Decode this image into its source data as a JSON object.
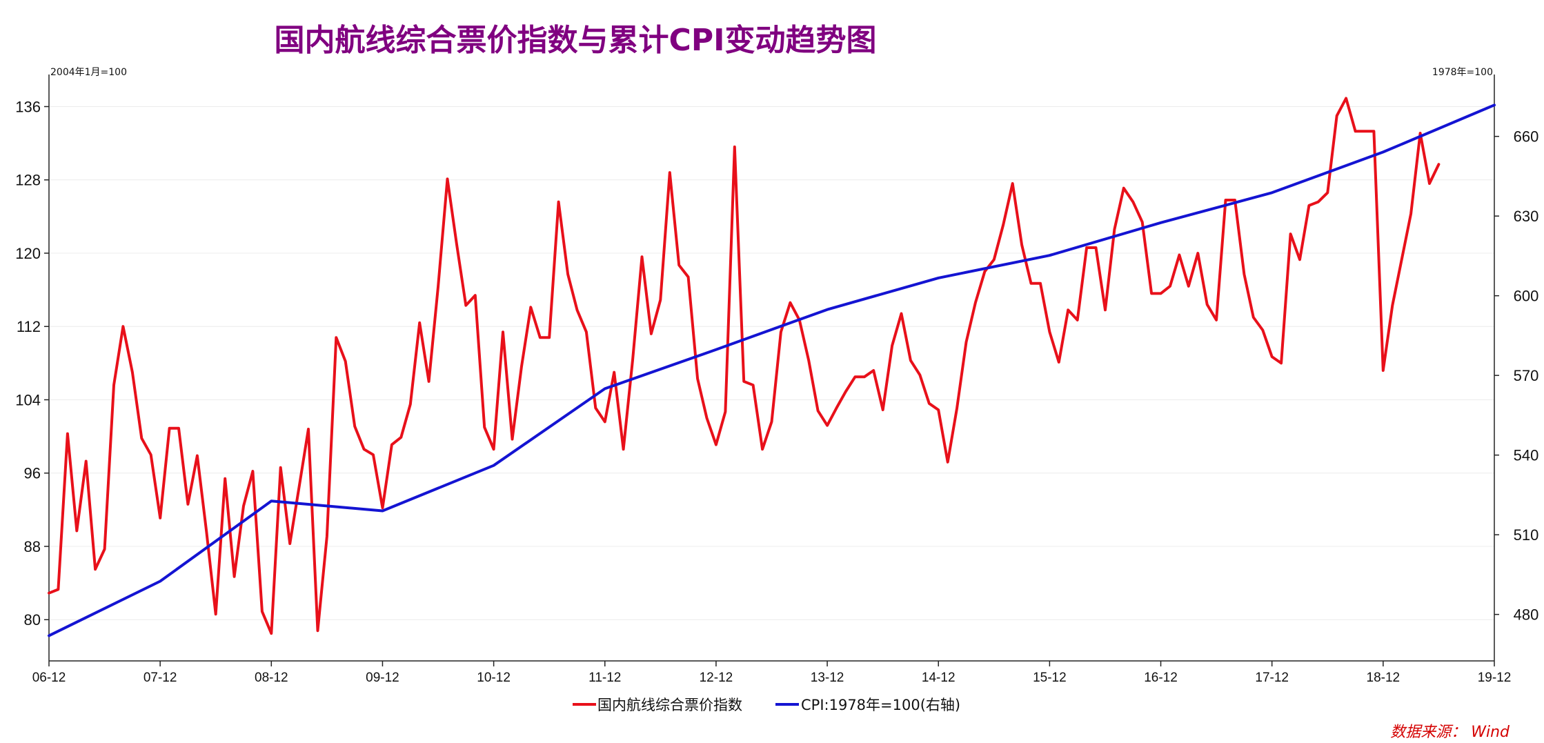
{
  "chart_data": {
    "type": "line",
    "title": "国内航线综合票价指数与累计CPI变动趋势图",
    "left_unit_label": "2004年1月=100",
    "right_unit_label": "1978年=100",
    "source": "数据来源：  Wind",
    "x_range": [
      "06-12",
      "19-12"
    ],
    "x_ticks": [
      "06-12",
      "07-12",
      "08-12",
      "09-12",
      "10-12",
      "11-12",
      "12-12",
      "13-12",
      "14-12",
      "15-12",
      "16-12",
      "17-12",
      "18-12",
      "19-12"
    ],
    "y_left": {
      "ticks": [
        80,
        88,
        96,
        104,
        112,
        120,
        128,
        136
      ],
      "range": [
        75.5,
        139.5
      ]
    },
    "y_right": {
      "ticks": [
        480,
        510,
        540,
        570,
        600,
        630,
        660
      ],
      "range": [
        462.5,
        683.3
      ]
    },
    "series": [
      {
        "name": "国内航线综合票价指数",
        "axis": "left",
        "color": "#e8101a",
        "start": "2006-12",
        "values": [
          82.9,
          83.3,
          100.3,
          89.7,
          97.3,
          85.5,
          87.7,
          105.6,
          112.0,
          107.0,
          99.8,
          98.0,
          91.1,
          100.9,
          100.9,
          92.6,
          97.9,
          89.6,
          80.6,
          95.4,
          84.7,
          92.4,
          96.2,
          80.9,
          78.5,
          96.6,
          88.3,
          94.5,
          100.8,
          78.8,
          89.1,
          110.8,
          108.2,
          101.1,
          98.6,
          98.0,
          92.2,
          99.1,
          99.9,
          103.5,
          112.4,
          106.0,
          116.3,
          128.1,
          121.0,
          114.3,
          115.4,
          101.0,
          98.6,
          111.4,
          99.7,
          107.6,
          114.1,
          110.8,
          110.8,
          125.6,
          117.7,
          113.8,
          111.4,
          103.1,
          101.6,
          107.0,
          98.6,
          108.4,
          119.6,
          111.2,
          114.9,
          128.8,
          118.7,
          117.4,
          106.3,
          102.0,
          99.1,
          102.7,
          131.6,
          106.0,
          105.6,
          98.6,
          101.6,
          111.4,
          114.6,
          112.7,
          108.3,
          102.8,
          101.2,
          103.1,
          104.9,
          106.5,
          106.5,
          107.2,
          102.9,
          109.9,
          113.4,
          108.3,
          106.7,
          103.6,
          102.9,
          97.2,
          103.1,
          110.3,
          114.6,
          118.0,
          119.3,
          123.1,
          127.6,
          120.9,
          116.7,
          116.7,
          111.4,
          108.1,
          113.8,
          112.7,
          120.6,
          120.6,
          113.8,
          122.6,
          127.1,
          125.6,
          123.4,
          115.6,
          115.6,
          116.4,
          119.8,
          116.4,
          120.0,
          114.4,
          112.7,
          125.8,
          125.8,
          117.7,
          113.0,
          111.6,
          108.7,
          108.0,
          122.1,
          119.3,
          125.2,
          125.6,
          126.6,
          135.0,
          136.9,
          133.3,
          133.3,
          133.3,
          107.2,
          114.3,
          119.3,
          124.3,
          133.1,
          127.6,
          129.7
        ]
      },
      {
        "name": "CPI:1978年=100(右轴)",
        "axis": "right",
        "color": "#1414d2",
        "points": [
          [
            "2006-12",
            472.0
          ],
          [
            "2007-12",
            492.5
          ],
          [
            "2008-12",
            522.7
          ],
          [
            "2009-12",
            519.0
          ],
          [
            "2010-12",
            536.1
          ],
          [
            "2011-12",
            565.0
          ],
          [
            "2012-12",
            579.7
          ],
          [
            "2013-12",
            594.8
          ],
          [
            "2014-12",
            606.7
          ],
          [
            "2015-12",
            615.2
          ],
          [
            "2016-12",
            627.5
          ],
          [
            "2017-12",
            638.8
          ],
          [
            "2018-12",
            654.1
          ],
          [
            "2019-12",
            671.8
          ]
        ]
      }
    ]
  }
}
